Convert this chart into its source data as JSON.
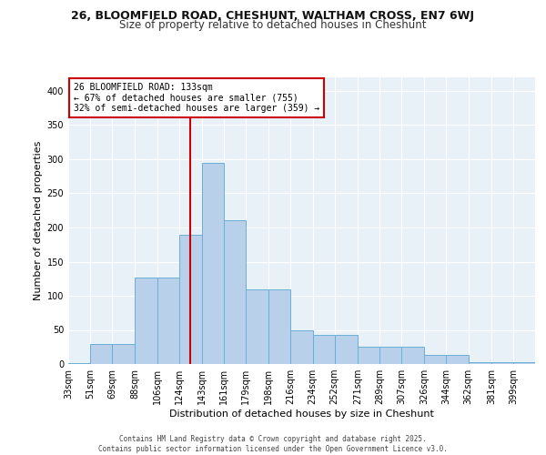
{
  "title_line1": "26, BLOOMFIELD ROAD, CHESHUNT, WALTHAM CROSS, EN7 6WJ",
  "title_line2": "Size of property relative to detached houses in Cheshunt",
  "xlabel": "Distribution of detached houses by size in Cheshunt",
  "ylabel": "Number of detached properties",
  "categories": [
    "33sqm",
    "51sqm",
    "69sqm",
    "88sqm",
    "106sqm",
    "124sqm",
    "143sqm",
    "161sqm",
    "179sqm",
    "198sqm",
    "216sqm",
    "234sqm",
    "252sqm",
    "271sqm",
    "289sqm",
    "307sqm",
    "326sqm",
    "344sqm",
    "362sqm",
    "381sqm",
    "399sqm"
  ],
  "bar_heights": [
    2,
    30,
    30,
    127,
    127,
    190,
    295,
    210,
    110,
    110,
    50,
    43,
    43,
    25,
    25,
    25,
    13,
    13,
    3,
    3,
    3
  ],
  "bin_edges": [
    33,
    51,
    69,
    88,
    106,
    124,
    143,
    161,
    179,
    198,
    216,
    234,
    252,
    271,
    289,
    307,
    326,
    344,
    362,
    381,
    399,
    417
  ],
  "bar_color": "#b8d0ea",
  "bar_edge_color": "#6baed6",
  "bg_color": "#e8f0f8",
  "grid_color": "#ffffff",
  "ref_line_color": "#cc0000",
  "annotation_text": "26 BLOOMFIELD ROAD: 133sqm\n← 67% of detached houses are smaller (755)\n32% of semi-detached houses are larger (359) →",
  "annotation_box_color": "#ffffff",
  "annotation_box_edge": "#cc0000",
  "footer_text": "Contains HM Land Registry data © Crown copyright and database right 2025.\nContains public sector information licensed under the Open Government Licence v3.0.",
  "ylim": [
    0,
    420
  ],
  "yticks": [
    0,
    50,
    100,
    150,
    200,
    250,
    300,
    350,
    400
  ],
  "title1_fontsize": 9,
  "title2_fontsize": 8.5,
  "ylabel_fontsize": 8,
  "xlabel_fontsize": 8,
  "tick_fontsize": 7,
  "footer_fontsize": 5.5
}
